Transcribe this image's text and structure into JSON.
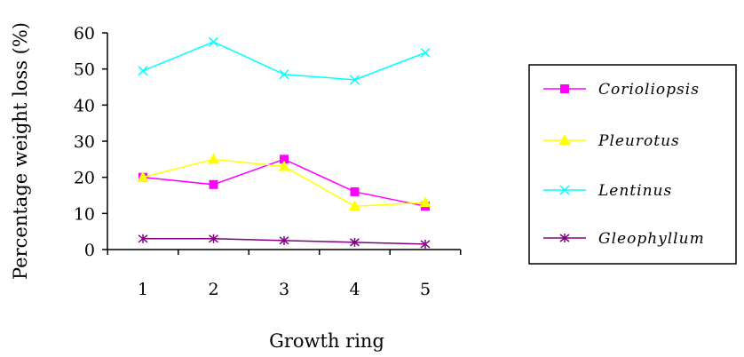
{
  "chart_data": {
    "type": "line",
    "title": "",
    "xlabel": "Growth ring",
    "ylabel": "Percentage weight loss (%)",
    "categories": [
      "1",
      "2",
      "3",
      "4",
      "5"
    ],
    "yticks": [
      "60",
      "50",
      "40",
      "30",
      "20",
      "10",
      "0"
    ],
    "ylim": [
      0,
      60
    ],
    "grid": false,
    "legend_position": "right",
    "series": [
      {
        "name": "Corioliopsis",
        "color": "#ff00ff",
        "marker": "square",
        "values": [
          20,
          18,
          25,
          16,
          12
        ]
      },
      {
        "name": "Pleurotus",
        "color": "#ffff00",
        "marker": "triangle",
        "values": [
          20,
          25,
          23,
          12,
          13
        ]
      },
      {
        "name": "Lentinus",
        "color": "#00ffff",
        "marker": "x",
        "values": [
          49.5,
          57.5,
          48.5,
          47,
          54.5
        ]
      },
      {
        "name": "Gleophyllum",
        "color": "#800080",
        "marker": "star",
        "values": [
          3,
          3,
          2.5,
          2,
          1.5
        ]
      }
    ]
  }
}
